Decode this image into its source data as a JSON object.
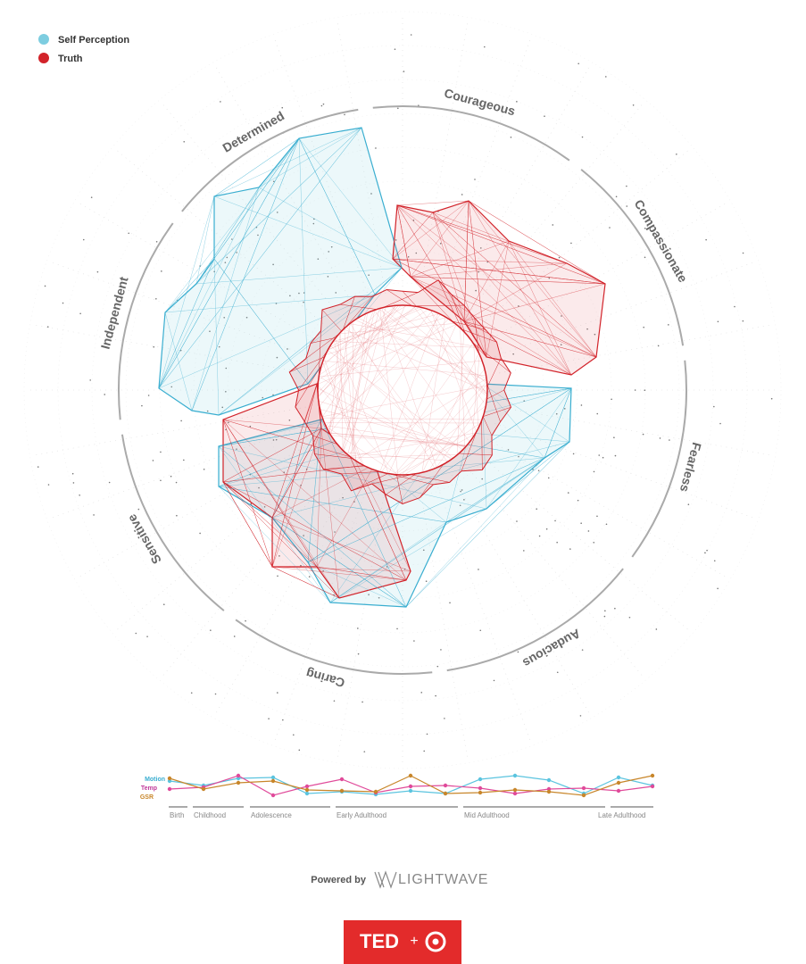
{
  "legend": [
    {
      "label": "Self Perception"
    },
    {
      "label": "Truth"
    }
  ],
  "traits": [
    "Courageous",
    "Compassionate",
    "Fearless",
    "Audacious",
    "Caring",
    "Sensitive",
    "Independent",
    "Determined"
  ],
  "timeline": {
    "signals": [
      "Motion",
      "Temp",
      "GSR"
    ],
    "stages": [
      "Birth",
      "Childhood",
      "Adolescence",
      "Early Adulthood",
      "Mid Adulthood",
      "Late Adulthood"
    ]
  },
  "footer": {
    "powered_by": "Powered by",
    "brand": "LIGHTWAVE",
    "badge_left": "TED",
    "badge_plus": "+"
  }
}
